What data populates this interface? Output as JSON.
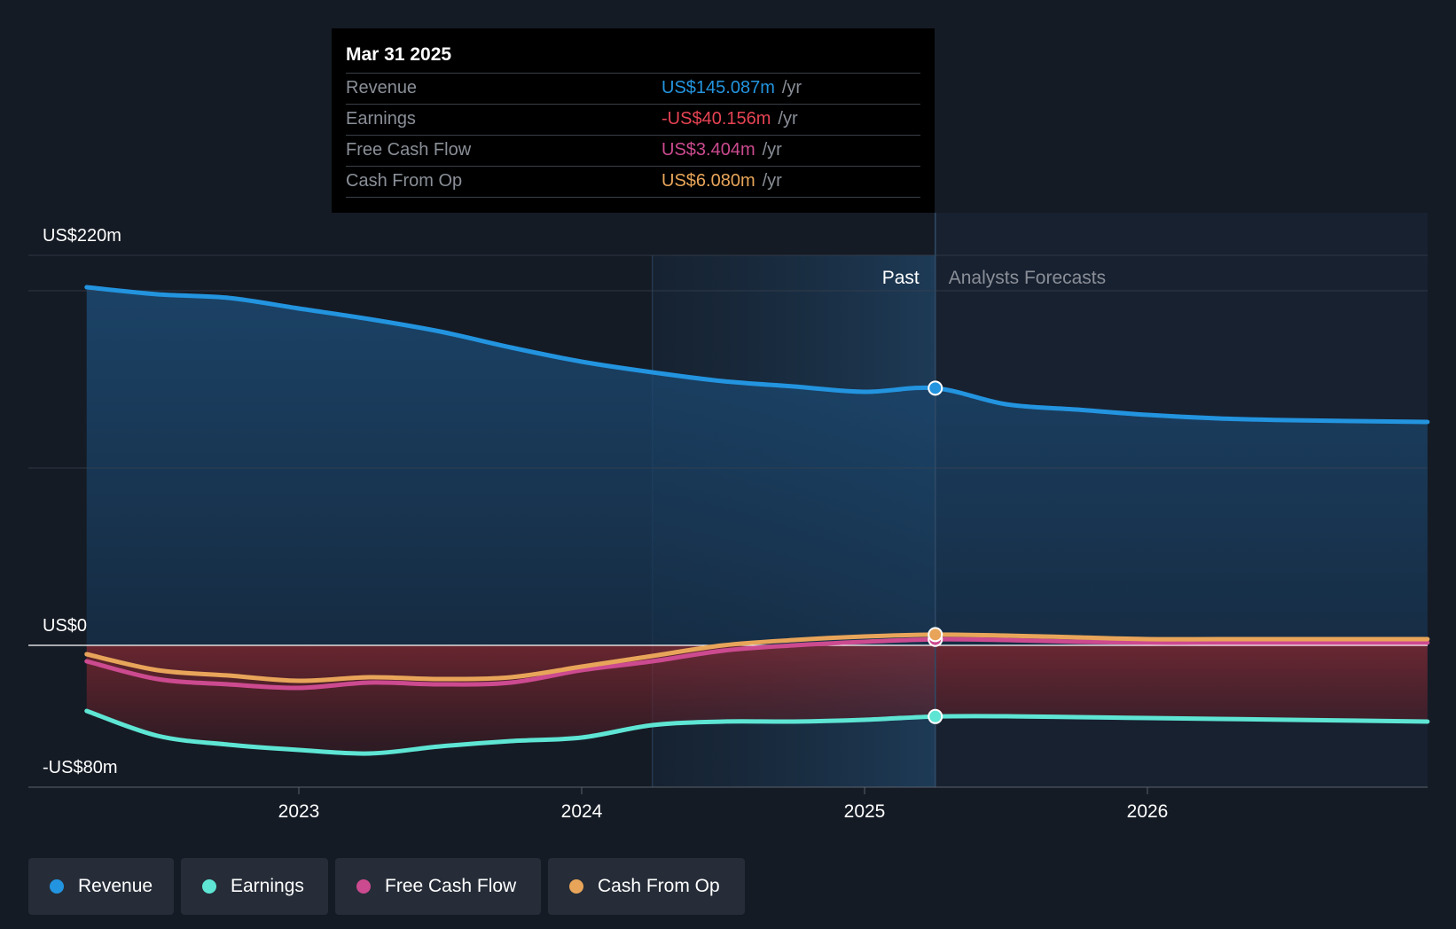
{
  "tooltip": {
    "date": "Mar 31 2025",
    "rows": [
      {
        "label": "Revenue",
        "value": "US$145.087m",
        "unit": "/yr",
        "color": "#2394df"
      },
      {
        "label": "Earnings",
        "value": "-US$40.156m",
        "unit": "/yr",
        "color": "#e64353"
      },
      {
        "label": "Free Cash Flow",
        "value": "US$3.404m",
        "unit": "/yr",
        "color": "#cc4a8f"
      },
      {
        "label": "Cash From Op",
        "value": "US$6.080m",
        "unit": "/yr",
        "color": "#e8a55a"
      }
    ]
  },
  "legend": [
    {
      "label": "Revenue",
      "color": "#2394df"
    },
    {
      "label": "Earnings",
      "color": "#5ee5d4"
    },
    {
      "label": "Free Cash Flow",
      "color": "#cc4a8f"
    },
    {
      "label": "Cash From Op",
      "color": "#e8a55a"
    }
  ],
  "chart_data": {
    "type": "area",
    "title": "",
    "xlabel": "",
    "ylabel": "",
    "ylim": [
      -80,
      220
    ],
    "x_range": [
      2022.0,
      2026.99
    ],
    "y_tick_labels": [
      {
        "value": 220,
        "label": "US$220m"
      },
      {
        "value": 0,
        "label": "US$0"
      },
      {
        "value": -80,
        "label": "-US$80m"
      }
    ],
    "x_ticks": [
      2023,
      2024,
      2025,
      2026
    ],
    "past_label": "Past",
    "forecast_label": "Analysts Forecasts",
    "divider_x": 2025.25,
    "highlight_start_x": 2024.25,
    "series": [
      {
        "name": "Revenue",
        "color": "#2394df",
        "fill": true,
        "x": [
          2022.25,
          2022.5,
          2022.75,
          2023.0,
          2023.25,
          2023.5,
          2023.75,
          2024.0,
          2024.25,
          2024.5,
          2024.75,
          2025.0,
          2025.25,
          2025.5,
          2025.75,
          2026.0,
          2026.25,
          2026.5,
          2026.99
        ],
        "values": [
          202,
          198,
          196,
          190,
          184,
          177,
          168,
          160,
          154,
          149,
          146,
          143,
          145.087,
          136,
          133,
          130,
          128,
          127,
          126
        ]
      },
      {
        "name": "Earnings",
        "color": "#5ee5d4",
        "fill": true,
        "x": [
          2022.25,
          2022.5,
          2022.75,
          2023.0,
          2023.25,
          2023.5,
          2023.75,
          2024.0,
          2024.25,
          2024.5,
          2024.75,
          2025.0,
          2025.25,
          2025.5,
          2025.75,
          2026.0,
          2026.25,
          2026.5,
          2026.99
        ],
        "values": [
          -37,
          -51,
          -56,
          -59,
          -61,
          -57,
          -54,
          -52,
          -45,
          -43,
          -43,
          -42,
          -40.156,
          -40,
          -40.5,
          -41,
          -41.5,
          -42,
          -43
        ]
      },
      {
        "name": "Free Cash Flow",
        "color": "#cc4a8f",
        "fill": false,
        "x": [
          2022.25,
          2022.5,
          2022.75,
          2023.0,
          2023.25,
          2023.5,
          2023.75,
          2024.0,
          2024.25,
          2024.5,
          2024.75,
          2025.0,
          2025.25,
          2025.5,
          2025.75,
          2026.0,
          2026.25,
          2026.5,
          2026.99
        ],
        "values": [
          -9,
          -19,
          -22,
          -24,
          -21,
          -22,
          -21,
          -14,
          -9,
          -3,
          0,
          2,
          3.404,
          3,
          2,
          1.5,
          1.5,
          1.5,
          1.5
        ]
      },
      {
        "name": "Cash From Op",
        "color": "#e8a55a",
        "fill": false,
        "x": [
          2022.25,
          2022.5,
          2022.75,
          2023.0,
          2023.25,
          2023.5,
          2023.75,
          2024.0,
          2024.25,
          2024.5,
          2024.75,
          2025.0,
          2025.25,
          2025.5,
          2025.75,
          2026.0,
          2026.25,
          2026.5,
          2026.99
        ],
        "values": [
          -5,
          -14,
          -17,
          -20,
          -18,
          -19,
          -18,
          -12,
          -6,
          0,
          3,
          5,
          6.08,
          5.5,
          4.5,
          3.5,
          3.5,
          3.5,
          3.5
        ]
      }
    ]
  }
}
